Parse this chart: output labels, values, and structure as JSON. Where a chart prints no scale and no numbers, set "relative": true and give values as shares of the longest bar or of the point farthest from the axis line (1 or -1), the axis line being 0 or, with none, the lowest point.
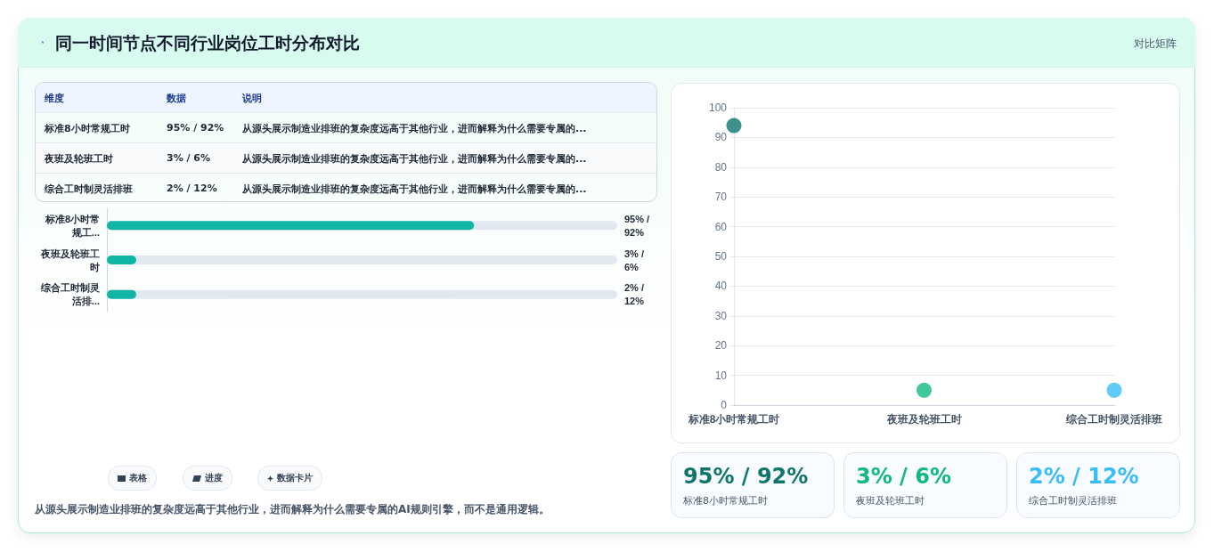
{
  "chart_data": [
    {
      "type": "other",
      "title": "同一时间节点不同行业岗位工时分布对比",
      "subtitle": "对比矩阵",
      "annotations": [
        "维度",
        "数据",
        "说明",
        "标准8小时常规工时",
        "95% / 92%",
        "从源头展示制造业排班的复杂度远高于其他行业，进而解释为什么需要专属的...",
        "夜班及轮班工时",
        "3% / 6%",
        "从源头展示制造业排班的复杂度远高于其他行业，进而解释为什么需要专属的...",
        "综合工时制灵活排班",
        "2% / 12%",
        "从源头展示制造业排班的复杂度远高于其他行业，进而解释为什么需要专属的..."
      ]
    },
    {
      "type": "bar",
      "orientation": "horizontal",
      "relative": true,
      "color": "#12b5a4",
      "categories": [
        "标准8小时常规工...",
        "夜班及轮班工时",
        "综合工时制灵活排..."
      ],
      "values": [
        1,
        0.08,
        0.08
      ],
      "annotations": [
        "95% / 92%",
        "3% / 6%",
        "2% / 12%"
      ]
    },
    {
      "type": "scatter",
      "categories": [
        "标准8小时常规工时",
        "夜班及轮班工时",
        "综合工时制灵活排班"
      ],
      "values": [
        94,
        5,
        5
      ],
      "colors": [
        "#0f766e",
        "#10b981",
        "#38bdf8"
      ],
      "ylim": [
        0,
        100
      ],
      "yticks": [
        0,
        10,
        20,
        30,
        40,
        50,
        60,
        70,
        80,
        90,
        100
      ],
      "grid": "y",
      "marker": "circle"
    },
    {
      "type": "other",
      "annotations": [
        "95% / 92%",
        "标准8小时常规工时",
        "3% / 6%",
        "夜班及轮班工时",
        "2% / 12%",
        "综合工时制灵活排班"
      ],
      "colors": [
        "#0f766e",
        "#10b981",
        "#38bdf8"
      ]
    },
    {
      "type": "other",
      "annotations": [
        "表格",
        "进度",
        "数据卡片",
        "从源头展示制造业排班的复杂度远高于其他行业，进而解释为什么需要专属的AI规则引擎，而不是通用逻辑。"
      ]
    }
  ]
}
